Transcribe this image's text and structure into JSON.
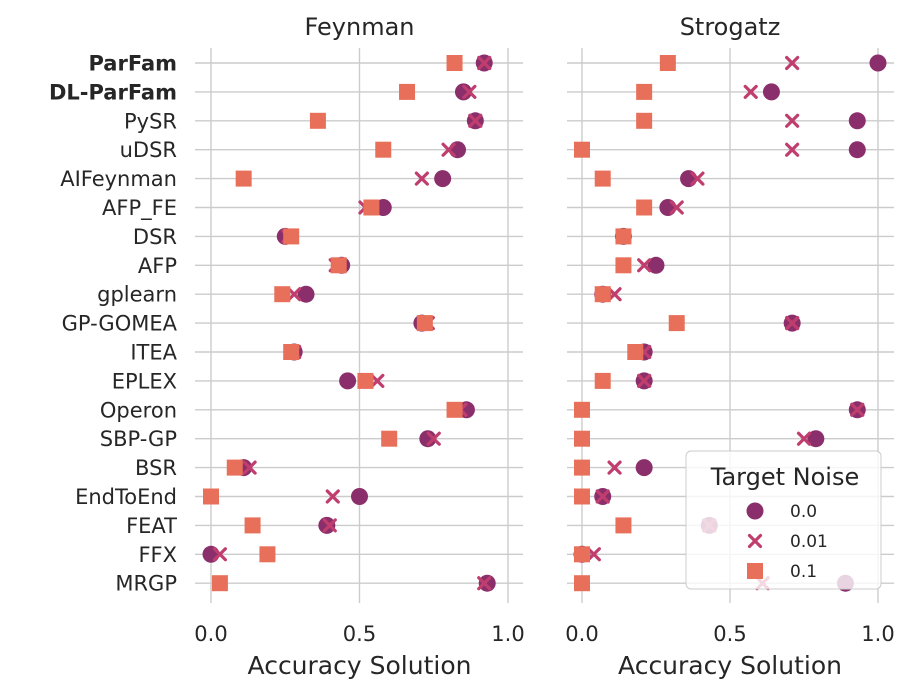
{
  "chart_data": {
    "type": "scatter",
    "colors": {
      "noise_0.0": "#8a2f6b",
      "noise_0.01": "#c03e6e",
      "noise_0.1": "#e8705a"
    },
    "algorithms": [
      "ParFam",
      "DL-ParFam",
      "PySR",
      "uDSR",
      "AIFeynman",
      "AFP_FE",
      "DSR",
      "AFP",
      "gplearn",
      "GP-GOMEA",
      "ITEA",
      "EPLEX",
      "Operon",
      "SBP-GP",
      "BSR",
      "EndToEnd",
      "FEAT",
      "FFX",
      "MRGP"
    ],
    "bold_algorithms": [
      "ParFam",
      "DL-ParFam"
    ],
    "xlabel": "Accuracy Solution",
    "xlim": [
      -0.05,
      1.05
    ],
    "xticks": [
      0.0,
      0.5,
      1.0
    ],
    "xtick_labels": [
      "0.0",
      "0.5",
      "1.0"
    ],
    "legend": {
      "title": "Target Noise",
      "entries": [
        {
          "label": "0.0",
          "marker": "circle",
          "series": "noise_0.0"
        },
        {
          "label": "0.01",
          "marker": "x",
          "series": "noise_0.01"
        },
        {
          "label": "0.1",
          "marker": "square",
          "series": "noise_0.1"
        }
      ]
    },
    "panels": [
      {
        "title": "Feynman",
        "series": {
          "noise_0.0": [
            0.92,
            0.85,
            0.89,
            0.83,
            0.78,
            0.58,
            0.25,
            0.44,
            0.32,
            0.71,
            0.28,
            0.46,
            0.86,
            0.73,
            0.11,
            0.5,
            0.39,
            0.0,
            0.93
          ],
          "noise_0.01": [
            0.92,
            0.87,
            0.89,
            0.8,
            0.71,
            0.52,
            0.26,
            0.42,
            0.28,
            0.73,
            0.28,
            0.56,
            0.84,
            0.75,
            0.13,
            0.41,
            0.4,
            0.03,
            0.92
          ],
          "noise_0.1": [
            0.82,
            0.66,
            0.36,
            0.58,
            0.11,
            0.54,
            0.27,
            0.43,
            0.24,
            0.72,
            0.27,
            0.52,
            0.82,
            0.6,
            0.08,
            0.0,
            0.14,
            0.19,
            0.03
          ]
        }
      },
      {
        "title": "Strogatz",
        "series": {
          "noise_0.0": [
            1.0,
            0.64,
            0.93,
            0.93,
            0.36,
            0.29,
            0.14,
            0.25,
            0.07,
            0.71,
            0.21,
            0.21,
            0.93,
            0.79,
            0.21,
            0.07,
            0.43,
            0.0,
            0.89
          ],
          "noise_0.01": [
            0.71,
            0.57,
            0.71,
            0.71,
            0.39,
            0.32,
            0.14,
            0.21,
            0.11,
            0.71,
            0.21,
            0.21,
            0.93,
            0.75,
            0.11,
            0.07,
            0.43,
            0.04,
            0.61
          ],
          "noise_0.1": [
            0.29,
            0.21,
            0.21,
            0.0,
            0.07,
            0.21,
            0.14,
            0.14,
            0.07,
            0.32,
            0.18,
            0.07,
            0.0,
            0.0,
            0.0,
            0.0,
            0.14,
            0.0,
            0.0
          ]
        }
      }
    ]
  }
}
